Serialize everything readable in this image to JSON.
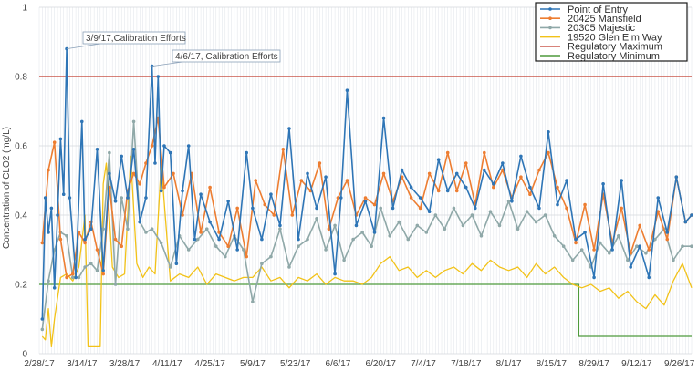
{
  "chart_data": {
    "type": "line",
    "ylabel": "Concentration of CLO2 (mg/L)",
    "ylim": [
      0,
      1
    ],
    "yticks": [
      0,
      0.2,
      0.4,
      0.6,
      0.8,
      1
    ],
    "ytick_labels": [
      "0",
      "0.2",
      "0.4",
      "0.6",
      "0.8",
      "1"
    ],
    "xlim": [
      "2/28/17",
      "9/30/17"
    ],
    "xticks": [
      "2/28/17",
      "3/14/17",
      "3/28/17",
      "4/11/17",
      "4/25/17",
      "5/9/17",
      "5/23/17",
      "6/6/17",
      "6/20/17",
      "7/4/17",
      "7/18/17",
      "8/1/17",
      "8/15/17",
      "8/29/17",
      "9/12/17",
      "9/26/17"
    ],
    "grid": true,
    "legend_position": "top-right",
    "annotations": [
      {
        "text": "3/9/17,Calibration Efforts",
        "date": "3/9/17",
        "y": 0.88
      },
      {
        "text": "4/6/17, Calibration Efforts",
        "date": "4/6/17",
        "y": 0.83
      }
    ],
    "series": [
      {
        "name": "Point of Entry",
        "color": "#2e75b6",
        "style": "line-markers",
        "x": [
          "3/1/17",
          "3/2/17",
          "3/3/17",
          "3/4/17",
          "3/5/17",
          "3/6/17",
          "3/7/17",
          "3/8/17",
          "3/9/17",
          "3/10/17",
          "3/12/17",
          "3/14/17",
          "3/15/17",
          "3/17/17",
          "3/19/17",
          "3/21/17",
          "3/23/17",
          "3/25/17",
          "3/27/17",
          "3/29/17",
          "3/31/17",
          "4/2/17",
          "4/4/17",
          "4/6/17",
          "4/7/17",
          "4/8/17",
          "4/9/17",
          "4/10/17",
          "4/12/17",
          "4/14/17",
          "4/16/17",
          "4/18/17",
          "4/20/17",
          "4/22/17",
          "4/25/17",
          "4/28/17",
          "5/1/17",
          "5/4/17",
          "5/7/17",
          "5/9/17",
          "5/12/17",
          "5/15/17",
          "5/18/17",
          "5/21/17",
          "5/24/17",
          "5/27/17",
          "5/30/17",
          "6/2/17",
          "6/5/17",
          "6/7/17",
          "6/9/17",
          "6/12/17",
          "6/15/17",
          "6/18/17",
          "6/21/17",
          "6/24/17",
          "6/27/17",
          "6/30/17",
          "7/3/17",
          "7/6/17",
          "7/9/17",
          "7/12/17",
          "7/15/17",
          "7/18/17",
          "7/21/17",
          "7/24/17",
          "7/27/17",
          "7/30/17",
          "8/2/17",
          "8/5/17",
          "8/8/17",
          "8/11/17",
          "8/14/17",
          "8/17/17",
          "8/20/17",
          "8/23/17",
          "8/26/17",
          "8/29/17",
          "9/1/17",
          "9/4/17",
          "9/7/17",
          "9/10/17",
          "9/13/17",
          "9/16/17",
          "9/19/17",
          "9/22/17",
          "9/25/17",
          "9/28/17",
          "9/30/17"
        ],
        "values": [
          0.1,
          0.45,
          0.35,
          0.42,
          0.19,
          0.4,
          0.62,
          0.46,
          0.88,
          0.45,
          0.22,
          0.67,
          0.33,
          0.36,
          0.59,
          0.24,
          0.52,
          0.44,
          0.57,
          0.45,
          0.59,
          0.38,
          0.45,
          0.83,
          0.55,
          0.8,
          0.47,
          0.6,
          0.58,
          0.26,
          0.47,
          0.6,
          0.33,
          0.46,
          0.38,
          0.33,
          0.44,
          0.3,
          0.58,
          0.42,
          0.33,
          0.46,
          0.37,
          0.65,
          0.33,
          0.52,
          0.42,
          0.51,
          0.23,
          0.45,
          0.76,
          0.37,
          0.44,
          0.35,
          0.68,
          0.42,
          0.53,
          0.48,
          0.45,
          0.41,
          0.56,
          0.47,
          0.52,
          0.48,
          0.42,
          0.53,
          0.49,
          0.55,
          0.44,
          0.57,
          0.48,
          0.42,
          0.64,
          0.43,
          0.5,
          0.33,
          0.35,
          0.22,
          0.49,
          0.3,
          0.5,
          0.25,
          0.31,
          0.22,
          0.45,
          0.35,
          0.51,
          0.38,
          0.4
        ]
      },
      {
        "name": "20425 Mansfield",
        "color": "#ed7d31",
        "style": "line-markers",
        "x": [
          "3/1/17",
          "3/3/17",
          "3/5/17",
          "3/7/17",
          "3/9/17",
          "3/11/17",
          "3/13/17",
          "3/15/17",
          "3/17/17",
          "3/19/17",
          "3/21/17",
          "3/23/17",
          "3/25/17",
          "3/27/17",
          "3/29/17",
          "3/31/17",
          "4/2/17",
          "4/4/17",
          "4/6/17",
          "4/8/17",
          "4/10/17",
          "4/13/17",
          "4/16/17",
          "4/19/17",
          "4/22/17",
          "4/25/17",
          "4/28/17",
          "5/1/17",
          "5/4/17",
          "5/7/17",
          "5/10/17",
          "5/13/17",
          "5/16/17",
          "5/19/17",
          "5/22/17",
          "5/25/17",
          "5/28/17",
          "5/31/17",
          "6/3/17",
          "6/6/17",
          "6/9/17",
          "6/12/17",
          "6/15/17",
          "6/18/17",
          "6/21/17",
          "6/24/17",
          "6/27/17",
          "6/30/17",
          "7/3/17",
          "7/6/17",
          "7/9/17",
          "7/12/17",
          "7/15/17",
          "7/18/17",
          "7/21/17",
          "7/24/17",
          "7/27/17",
          "7/30/17",
          "8/2/17",
          "8/5/17",
          "8/8/17",
          "8/11/17",
          "8/14/17",
          "8/17/17",
          "8/20/17",
          "8/23/17",
          "8/26/17",
          "8/29/17",
          "9/1/17",
          "9/4/17",
          "9/7/17",
          "9/10/17",
          "9/13/17",
          "9/16/17",
          "9/19/17",
          "9/22/17",
          "9/25/17",
          "9/28/17",
          "9/30/17"
        ],
        "values": [
          0.32,
          0.53,
          0.61,
          0.33,
          0.22,
          0.23,
          0.35,
          0.32,
          0.38,
          0.3,
          0.23,
          0.48,
          0.33,
          0.31,
          0.47,
          0.52,
          0.49,
          0.55,
          0.6,
          0.68,
          0.48,
          0.52,
          0.4,
          0.52,
          0.35,
          0.48,
          0.35,
          0.31,
          0.42,
          0.28,
          0.5,
          0.43,
          0.4,
          0.59,
          0.4,
          0.5,
          0.47,
          0.55,
          0.36,
          0.45,
          0.5,
          0.4,
          0.45,
          0.43,
          0.52,
          0.44,
          0.51,
          0.45,
          0.42,
          0.52,
          0.47,
          0.58,
          0.47,
          0.55,
          0.43,
          0.58,
          0.48,
          0.53,
          0.45,
          0.51,
          0.46,
          0.53,
          0.58,
          0.48,
          0.42,
          0.32,
          0.43,
          0.3,
          0.46,
          0.32,
          0.42,
          0.29,
          0.37,
          0.3,
          0.41,
          0.33,
          0.51,
          0.38,
          0.4
        ]
      },
      {
        "name": "20305 Majestic",
        "color": "#8fa8a8",
        "style": "line-markers",
        "x": [
          "3/1/17",
          "3/3/17",
          "3/5/17",
          "3/7/17",
          "3/9/17",
          "3/11/17",
          "3/13/17",
          "3/15/17",
          "3/17/17",
          "3/19/17",
          "3/21/17",
          "3/23/17",
          "3/25/17",
          "3/27/17",
          "3/29/17",
          "3/31/17",
          "4/2/17",
          "4/4/17",
          "4/6/17",
          "4/9/17",
          "4/12/17",
          "4/15/17",
          "4/18/17",
          "4/21/17",
          "4/24/17",
          "4/27/17",
          "4/30/17",
          "5/3/17",
          "5/6/17",
          "5/9/17",
          "5/12/17",
          "5/15/17",
          "5/18/17",
          "5/21/17",
          "5/24/17",
          "5/27/17",
          "5/30/17",
          "6/2/17",
          "6/5/17",
          "6/8/17",
          "6/11/17",
          "6/14/17",
          "6/17/17",
          "6/20/17",
          "6/23/17",
          "6/26/17",
          "6/29/17",
          "7/2/17",
          "7/5/17",
          "7/8/17",
          "7/11/17",
          "7/14/17",
          "7/17/17",
          "7/20/17",
          "7/23/17",
          "7/26/17",
          "7/29/17",
          "8/1/17",
          "8/4/17",
          "8/7/17",
          "8/10/17",
          "8/13/17",
          "8/16/17",
          "8/19/17",
          "8/22/17",
          "8/25/17",
          "8/28/17",
          "8/31/17",
          "9/3/17",
          "9/6/17",
          "9/9/17",
          "9/12/17",
          "9/15/17",
          "9/18/17",
          "9/21/17",
          "9/24/17",
          "9/27/17",
          "9/30/17"
        ],
        "values": [
          0.07,
          0.21,
          0.3,
          0.35,
          0.34,
          0.22,
          0.22,
          0.25,
          0.26,
          0.24,
          0.36,
          0.58,
          0.2,
          0.45,
          0.36,
          0.67,
          0.38,
          0.35,
          0.36,
          0.32,
          0.25,
          0.34,
          0.3,
          0.33,
          0.36,
          0.31,
          0.28,
          0.34,
          0.3,
          0.15,
          0.26,
          0.28,
          0.36,
          0.25,
          0.31,
          0.33,
          0.39,
          0.3,
          0.37,
          0.27,
          0.33,
          0.35,
          0.31,
          0.42,
          0.34,
          0.38,
          0.33,
          0.37,
          0.35,
          0.4,
          0.36,
          0.42,
          0.37,
          0.4,
          0.34,
          0.41,
          0.37,
          0.44,
          0.36,
          0.41,
          0.38,
          0.4,
          0.34,
          0.31,
          0.27,
          0.3,
          0.25,
          0.32,
          0.29,
          0.34,
          0.27,
          0.31,
          0.29,
          0.33,
          0.36,
          0.27,
          0.31,
          0.31
        ]
      },
      {
        "name": "19520 Glen Elm Way",
        "color": "#f2c218",
        "style": "line",
        "x": [
          "3/1/17",
          "3/2/17",
          "3/3/17",
          "3/4/17",
          "3/5/17",
          "3/7/17",
          "3/9/17",
          "3/11/17",
          "3/13/17",
          "3/15/17",
          "3/16/17",
          "3/17/17",
          "3/18/17",
          "3/19/17",
          "3/20/17",
          "3/21/17",
          "3/22/17",
          "3/24/17",
          "3/26/17",
          "3/28/17",
          "3/30/17",
          "4/1/17",
          "4/3/17",
          "4/5/17",
          "4/7/17",
          "4/9/17",
          "4/12/17",
          "4/15/17",
          "4/18/17",
          "4/21/17",
          "4/24/17",
          "4/27/17",
          "4/30/17",
          "5/3/17",
          "5/6/17",
          "5/9/17",
          "5/12/17",
          "5/15/17",
          "5/18/17",
          "5/21/17",
          "5/24/17",
          "5/27/17",
          "5/30/17",
          "6/2/17",
          "6/5/17",
          "6/8/17",
          "6/11/17",
          "6/14/17",
          "6/17/17",
          "6/20/17",
          "6/23/17",
          "6/26/17",
          "6/29/17",
          "7/2/17",
          "7/5/17",
          "7/8/17",
          "7/11/17",
          "7/14/17",
          "7/17/17",
          "7/20/17",
          "7/23/17",
          "7/26/17",
          "7/29/17",
          "8/1/17",
          "8/4/17",
          "8/7/17",
          "8/10/17",
          "8/13/17",
          "8/16/17",
          "8/19/17",
          "8/22/17",
          "8/25/17",
          "8/28/17",
          "8/31/17",
          "9/3/17",
          "9/6/17",
          "9/9/17",
          "9/12/17",
          "9/15/17",
          "9/18/17",
          "9/21/17",
          "9/24/17",
          "9/27/17",
          "9/30/17"
        ],
        "values": [
          0.05,
          0.04,
          0.13,
          0.02,
          0.1,
          0.22,
          0.23,
          0.21,
          0.25,
          0.4,
          0.02,
          0.02,
          0.02,
          0.02,
          0.02,
          0.49,
          0.55,
          0.25,
          0.22,
          0.23,
          0.57,
          0.26,
          0.22,
          0.25,
          0.23,
          0.55,
          0.21,
          0.23,
          0.22,
          0.25,
          0.2,
          0.23,
          0.22,
          0.21,
          0.22,
          0.22,
          0.25,
          0.21,
          0.22,
          0.19,
          0.22,
          0.21,
          0.23,
          0.2,
          0.22,
          0.21,
          0.21,
          0.2,
          0.22,
          0.26,
          0.28,
          0.24,
          0.25,
          0.22,
          0.24,
          0.22,
          0.24,
          0.25,
          0.23,
          0.26,
          0.24,
          0.27,
          0.25,
          0.24,
          0.25,
          0.22,
          0.26,
          0.23,
          0.25,
          0.22,
          0.2,
          0.19,
          0.2,
          0.18,
          0.19,
          0.16,
          0.18,
          0.15,
          0.13,
          0.17,
          0.14,
          0.21,
          0.26,
          0.19
        ]
      },
      {
        "name": "Regulatory Maximum",
        "color": "#c0392b",
        "style": "line",
        "x": [
          "2/28/17",
          "9/30/17"
        ],
        "values": [
          0.8,
          0.8
        ]
      },
      {
        "name": "Regulatory Minimum",
        "color": "#4e9a3c",
        "style": "line",
        "x": [
          "2/28/17",
          "8/24/17",
          "8/24/17",
          "9/30/17"
        ],
        "values": [
          0.2,
          0.2,
          0.05,
          0.05
        ]
      }
    ]
  }
}
